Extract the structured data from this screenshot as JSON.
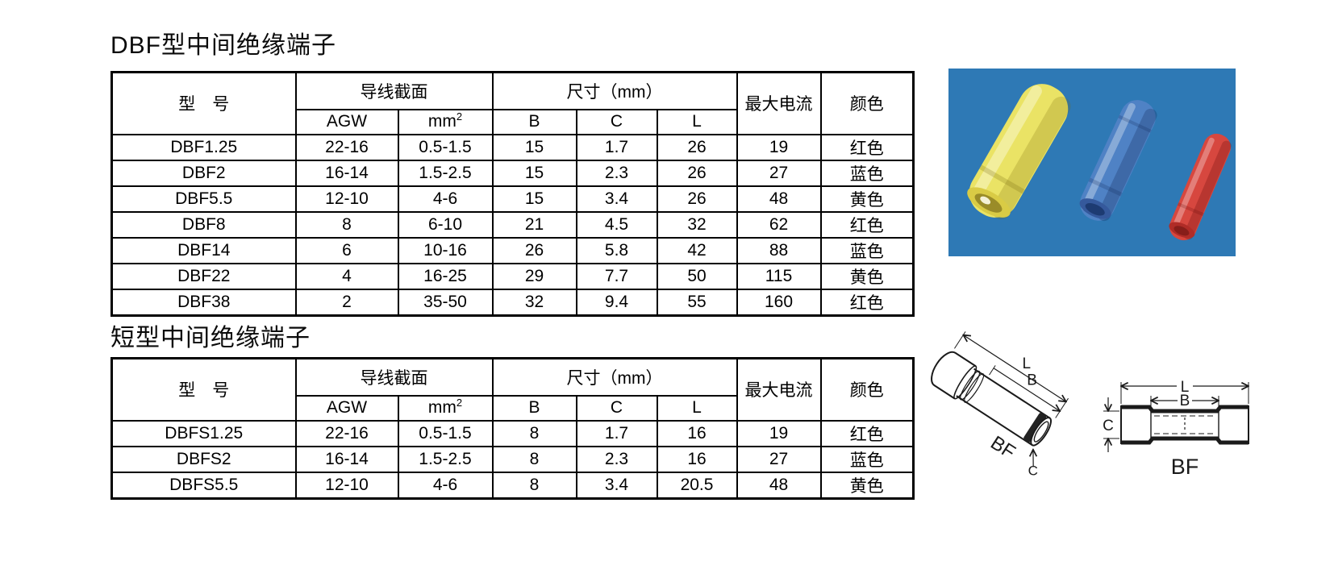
{
  "table_headers": {
    "model": "型　号",
    "wire_section": "导线截面",
    "agw": "AGW",
    "mm_base": "mm",
    "mm_sup": "2",
    "dims": "尺寸（mm）",
    "b": "B",
    "c": "C",
    "l": "L",
    "max_current": "最大电流",
    "color": "颜色"
  },
  "section1": {
    "title": "DBF型中间绝缘端子",
    "rows": [
      {
        "model": "DBF1.25",
        "agw": "22-16",
        "mm2": "0.5-1.5",
        "b": "15",
        "c": "1.7",
        "l": "26",
        "max_current": "19",
        "color": "红色"
      },
      {
        "model": "DBF2",
        "agw": "16-14",
        "mm2": "1.5-2.5",
        "b": "15",
        "c": "2.3",
        "l": "26",
        "max_current": "27",
        "color": "蓝色"
      },
      {
        "model": "DBF5.5",
        "agw": "12-10",
        "mm2": "4-6",
        "b": "15",
        "c": "3.4",
        "l": "26",
        "max_current": "48",
        "color": "黄色"
      },
      {
        "model": "DBF8",
        "agw": "8",
        "mm2": "6-10",
        "b": "21",
        "c": "4.5",
        "l": "32",
        "max_current": "62",
        "color": "红色"
      },
      {
        "model": "DBF14",
        "agw": "6",
        "mm2": "10-16",
        "b": "26",
        "c": "5.8",
        "l": "42",
        "max_current": "88",
        "color": "蓝色"
      },
      {
        "model": "DBF22",
        "agw": "4",
        "mm2": "16-25",
        "b": "29",
        "c": "7.7",
        "l": "50",
        "max_current": "115",
        "color": "黄色"
      },
      {
        "model": "DBF38",
        "agw": "2",
        "mm2": "35-50",
        "b": "32",
        "c": "9.4",
        "l": "55",
        "max_current": "160",
        "color": "红色"
      }
    ]
  },
  "section2": {
    "title": "短型中间绝缘端子",
    "rows": [
      {
        "model": "DBFS1.25",
        "agw": "22-16",
        "mm2": "0.5-1.5",
        "b": "8",
        "c": "1.7",
        "l": "16",
        "max_current": "19",
        "color": "红色"
      },
      {
        "model": "DBFS2",
        "agw": "16-14",
        "mm2": "1.5-2.5",
        "b": "8",
        "c": "2.3",
        "l": "16",
        "max_current": "27",
        "color": "蓝色"
      },
      {
        "model": "DBFS5.5",
        "agw": "12-10",
        "mm2": "4-6",
        "b": "8",
        "c": "3.4",
        "l": "20.5",
        "max_current": "48",
        "color": "黄色"
      }
    ]
  },
  "photo": {
    "background": "#2e79b5",
    "connectors": [
      {
        "name": "yellow-connector",
        "color": "#eae365"
      },
      {
        "name": "blue-connector",
        "color": "#4f82c5"
      },
      {
        "name": "red-connector",
        "color": "#d7473f"
      }
    ]
  },
  "diagram": {
    "iso_label": "BF",
    "side_label": "BF",
    "dim_l": "L",
    "dim_b": "B",
    "dim_c": "C",
    "dim_c_side": "C"
  }
}
